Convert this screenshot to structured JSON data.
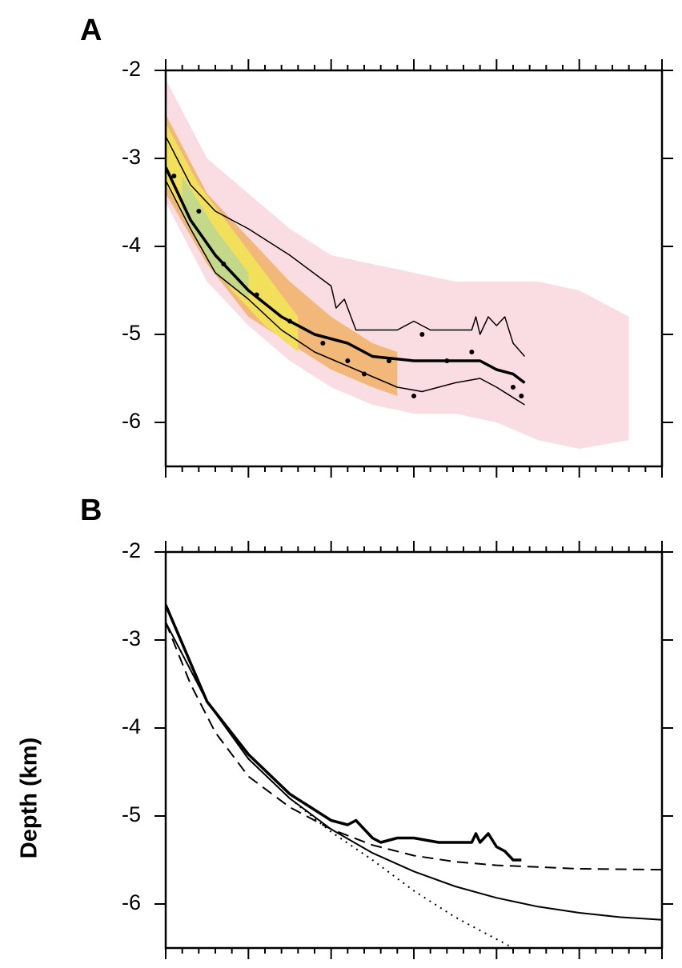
{
  "chart_data": [
    {
      "type": "line",
      "title": "A",
      "xlim": [
        0,
        6
      ],
      "ylim": [
        -6.5,
        -2
      ],
      "yticks": [
        -2,
        -3,
        -4,
        -5,
        -6
      ],
      "bands": [
        {
          "color": "#f9dde3",
          "x": [
            0,
            0.5,
            1,
            1.5,
            2,
            2.5,
            3,
            3.5,
            4,
            4.5,
            5,
            5.6
          ],
          "upper": [
            -2.1,
            -3.0,
            -3.4,
            -3.8,
            -4.1,
            -4.2,
            -4.3,
            -4.4,
            -4.4,
            -4.4,
            -4.5,
            -4.8
          ],
          "lower": [
            -3.5,
            -4.4,
            -4.9,
            -5.3,
            -5.6,
            -5.8,
            -5.9,
            -5.9,
            -6.0,
            -6.2,
            -6.3,
            -6.2
          ]
        },
        {
          "color": "#f2b87a",
          "x": [
            0,
            0.5,
            1,
            1.5,
            2,
            2.5,
            2.8
          ],
          "upper": [
            -2.5,
            -3.4,
            -3.9,
            -4.4,
            -4.8,
            -5.1,
            -5.2
          ],
          "lower": [
            -3.4,
            -4.2,
            -4.8,
            -5.1,
            -5.4,
            -5.6,
            -5.7
          ]
        },
        {
          "color": "#f3e05a",
          "x": [
            0,
            0.4,
            0.8,
            1.2,
            1.6
          ],
          "upper": [
            -2.6,
            -3.3,
            -3.8,
            -4.3,
            -4.8
          ],
          "lower": [
            -3.3,
            -3.9,
            -4.5,
            -4.9,
            -5.2
          ]
        },
        {
          "color": "#c4d88a",
          "x": [
            0.2,
            0.6,
            1.0
          ],
          "upper": [
            -3.2,
            -3.8,
            -4.3
          ],
          "lower": [
            -3.6,
            -4.3,
            -4.6
          ]
        }
      ],
      "series": [
        {
          "color": "#000000",
          "width": 1.5,
          "x": [
            0,
            0.3,
            0.6,
            1.0,
            1.5,
            2.0,
            2.06,
            2.16,
            2.3,
            2.8,
            3.0,
            3.2,
            3.5,
            3.7,
            3.75,
            3.8,
            3.9,
            4.0,
            4.1,
            4.2,
            4.34
          ],
          "values": [
            -2.75,
            -3.3,
            -3.6,
            -3.8,
            -4.1,
            -4.45,
            -4.7,
            -4.6,
            -4.95,
            -4.95,
            -4.85,
            -4.95,
            -4.95,
            -4.95,
            -4.8,
            -5.0,
            -4.8,
            -4.9,
            -4.8,
            -5.1,
            -5.25
          ]
        },
        {
          "color": "#000000",
          "width": 3.5,
          "x": [
            0,
            0.3,
            0.6,
            0.8,
            1.0,
            1.4,
            1.8,
            2.2,
            2.5,
            3.0,
            3.5,
            3.8,
            4.0,
            4.2,
            4.34
          ],
          "values": [
            -3.1,
            -3.7,
            -4.1,
            -4.3,
            -4.5,
            -4.8,
            -5.0,
            -5.1,
            -5.25,
            -5.3,
            -5.3,
            -5.3,
            -5.4,
            -5.45,
            -5.55
          ]
        },
        {
          "color": "#000000",
          "width": 1.5,
          "x": [
            0,
            0.3,
            0.6,
            1.0,
            1.4,
            1.8,
            2.3,
            2.8,
            3.1,
            3.5,
            3.8,
            4.0,
            4.34
          ],
          "values": [
            -3.25,
            -3.8,
            -4.3,
            -4.6,
            -4.95,
            -5.2,
            -5.4,
            -5.6,
            -5.65,
            -5.55,
            -5.5,
            -5.6,
            -5.8
          ]
        }
      ],
      "points": {
        "color": "#000000",
        "x": [
          0.1,
          0.4,
          0.7,
          1.1,
          1.5,
          1.9,
          2.2,
          2.4,
          2.7,
          3.0,
          3.1,
          3.4,
          3.7,
          4.2,
          4.3
        ],
        "values": [
          -3.2,
          -3.6,
          -4.2,
          -4.55,
          -4.85,
          -5.1,
          -5.3,
          -5.45,
          -5.3,
          -5.7,
          -5.0,
          -5.3,
          -5.2,
          -5.6,
          -5.7
        ]
      }
    },
    {
      "type": "line",
      "title": "B",
      "ylabel": "Depth (km)",
      "xlim": [
        0,
        6
      ],
      "ylim": [
        -6.5,
        -2
      ],
      "yticks": [
        -2,
        -3,
        -4,
        -5,
        -6
      ],
      "series": [
        {
          "color": "#000000",
          "width": 3.5,
          "dash": "solid",
          "x": [
            0,
            0.5,
            1.0,
            1.5,
            2.0,
            2.2,
            2.3,
            2.4,
            2.5,
            2.6,
            2.8,
            3.0,
            3.3,
            3.7,
            3.75,
            3.8,
            3.9,
            4.0,
            4.1,
            4.2,
            4.3
          ],
          "values": [
            -2.6,
            -3.7,
            -4.3,
            -4.75,
            -5.05,
            -5.1,
            -5.05,
            -5.15,
            -5.25,
            -5.3,
            -5.25,
            -5.25,
            -5.3,
            -5.3,
            -5.2,
            -5.3,
            -5.2,
            -5.35,
            -5.4,
            -5.5,
            -5.5
          ]
        },
        {
          "color": "#000000",
          "width": 2,
          "dash": "solid",
          "x": [
            0,
            0.5,
            1,
            1.5,
            2,
            2.5,
            3,
            3.5,
            4,
            4.5,
            5,
            5.5,
            6
          ],
          "values": [
            -2.8,
            -3.7,
            -4.35,
            -4.8,
            -5.15,
            -5.42,
            -5.63,
            -5.8,
            -5.93,
            -6.03,
            -6.1,
            -6.15,
            -6.18
          ]
        },
        {
          "color": "#000000",
          "width": 2,
          "dash": "dashed",
          "x": [
            0,
            0.3,
            0.6,
            1.0,
            1.5,
            2,
            2.5,
            3,
            3.5,
            4,
            4.5,
            5,
            6
          ],
          "values": [
            -2.8,
            -3.5,
            -4.05,
            -4.55,
            -4.9,
            -5.15,
            -5.33,
            -5.45,
            -5.52,
            -5.56,
            -5.58,
            -5.6,
            -5.61
          ]
        },
        {
          "color": "#000000",
          "width": 2,
          "dash": "dotted",
          "x": [
            0,
            0.5,
            1,
            1.5,
            2,
            2.5,
            3,
            3.5,
            4.2
          ],
          "values": [
            -2.8,
            -3.7,
            -4.35,
            -4.8,
            -5.18,
            -5.5,
            -5.85,
            -6.15,
            -6.5
          ]
        }
      ]
    }
  ]
}
